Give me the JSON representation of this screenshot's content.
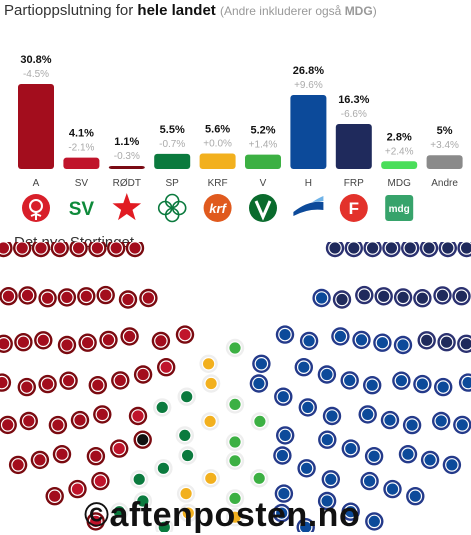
{
  "header": {
    "title_prefix": "Partioppslutning for ",
    "title_bold": "hele landet",
    "note_prefix": "(Andre inkluderer også ",
    "note_bold": "MDG",
    "note_suffix": ")"
  },
  "chart_data": [
    {
      "type": "bar",
      "categories": [
        "A",
        "SV",
        "RØDT",
        "SP",
        "KRF",
        "V",
        "H",
        "FRP",
        "MDG",
        "Andre"
      ],
      "values": [
        30.8,
        4.1,
        1.1,
        5.5,
        5.6,
        5.2,
        26.8,
        16.3,
        2.8,
        5
      ],
      "value_labels": [
        "30.8%",
        "4.1%",
        "1.1%",
        "5.5%",
        "5.6%",
        "5.2%",
        "26.8%",
        "16.3%",
        "2.8%",
        "5%"
      ],
      "change_labels": [
        "-4.5%",
        "-2.1%",
        "-0.3%",
        "-0.7%",
        "+0.0%",
        "+1.4%",
        "+9.6%",
        "-6.6%",
        "+2.4%",
        "+3.4%"
      ],
      "colors": [
        "#a30d1d",
        "#c0142b",
        "#7a0a14",
        "#0b7a3e",
        "#f2b01e",
        "#3cb043",
        "#0c4a9a",
        "#1f2a5c",
        "#4ade5a",
        "#8a8a8a"
      ],
      "logos": [
        "ap-rose-logo",
        "sv-logo",
        "rodt-star-logo",
        "sp-clover-logo",
        "krf-logo",
        "venstre-logo",
        "hoyre-logo",
        "frp-logo",
        "mdg-logo",
        ""
      ],
      "ylim": [
        0,
        31
      ],
      "grid": false,
      "title": "Partioppslutning for hele landet"
    },
    {
      "type": "parliament",
      "title": "Det nye Stortinget",
      "total_seats": 169,
      "series": [
        {
          "party": "A",
          "seats": 55,
          "color": "#a30d1d"
        },
        {
          "party": "SV",
          "seats": 7,
          "color": "#c0142b"
        },
        {
          "party": "RØDT",
          "seats": 1,
          "color": "#111111"
        },
        {
          "party": "SP",
          "seats": 10,
          "color": "#0b7a3e"
        },
        {
          "party": "KRF",
          "seats": 10,
          "color": "#f2b01e"
        },
        {
          "party": "V",
          "seats": 9,
          "color": "#3cb043"
        },
        {
          "party": "H",
          "seats": 48,
          "color": "#0c4a9a"
        },
        {
          "party": "FRP",
          "seats": 29,
          "color": "#1f2a5c"
        }
      ]
    }
  ],
  "subheading": "Det nye Stortinget",
  "watermark": "©aftenposten.no"
}
